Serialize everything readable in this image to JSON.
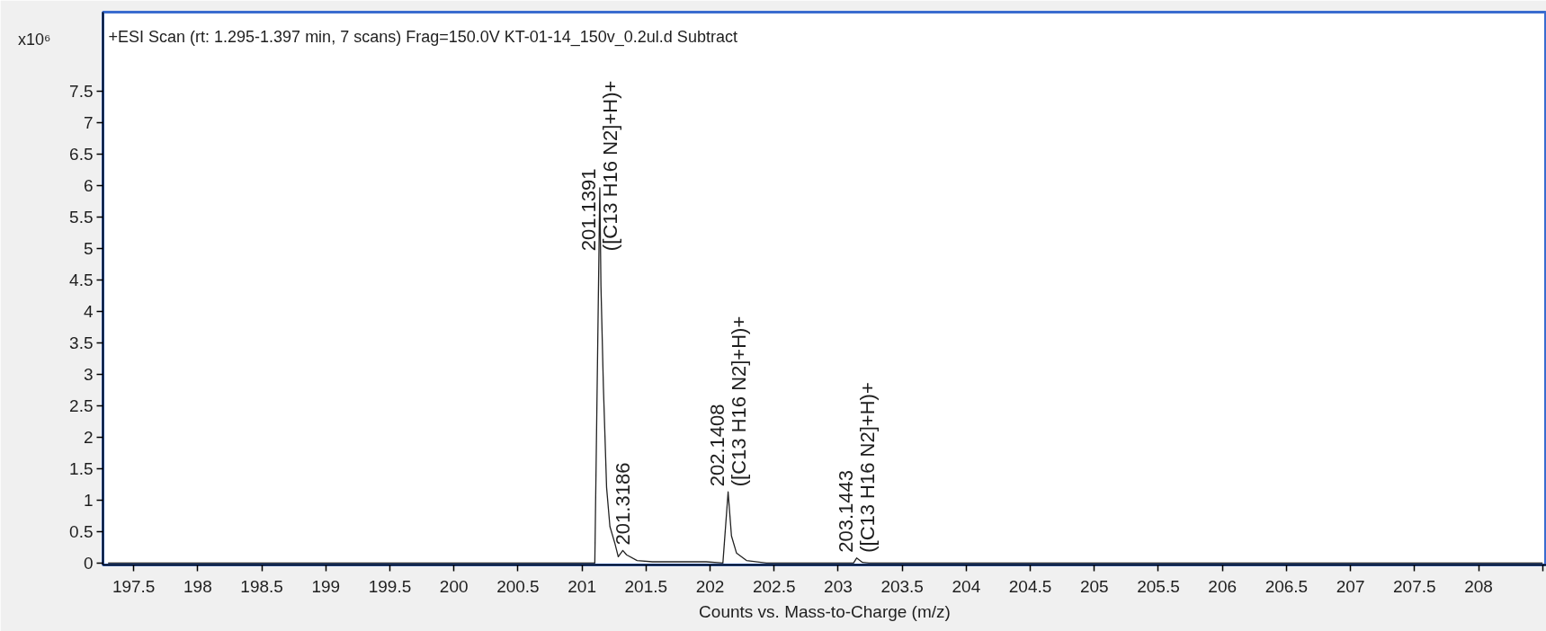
{
  "chart_data": {
    "type": "line",
    "title": "+ESI Scan (rt: 1.295-1.397 min, 7 scans) Frag=150.0V KT-01-14_150v_0.2ul.d  Subtract",
    "xlabel": "Counts vs. Mass-to-Charge (m/z)",
    "ylabel": "x10⁶",
    "x": [
      197.3,
      201.1,
      201.139,
      201.148,
      201.167,
      201.192,
      201.218,
      201.257,
      201.283,
      201.3186,
      201.348,
      201.43,
      201.55,
      201.97,
      202.1,
      202.1408,
      202.167,
      202.206,
      202.284,
      202.44,
      203.12,
      203.1443,
      203.19,
      203.24,
      208.5
    ],
    "series": [
      {
        "color": "#222222",
        "values": [
          0,
          0,
          5.96,
          4.4,
          2.8,
          1.2,
          0.58,
          0.31,
          0.1,
          0.2,
          0.13,
          0.04,
          0.02,
          0.02,
          0,
          1.13,
          0.43,
          0.16,
          0.04,
          0,
          0,
          0.08,
          0.01,
          0,
          0
        ]
      }
    ],
    "xlim": [
      197.26,
      208.53
    ],
    "ylim": [
      -0.03,
      8.75
    ],
    "xticks": [
      197.5,
      198,
      198.5,
      199,
      199.5,
      200,
      200.5,
      201,
      201.5,
      202,
      202.5,
      203,
      203.5,
      204,
      204.5,
      205,
      205.5,
      206,
      206.5,
      207,
      207.5,
      208,
      {
        "value": 208.5,
        "label": null
      }
    ],
    "yticks": [
      0,
      0.5,
      1,
      1.5,
      2,
      2.5,
      3,
      3.5,
      4,
      4.5,
      5,
      5.5,
      6,
      6.5,
      7,
      7.5
    ],
    "annotations": [
      {
        "text": "201.1391",
        "x": 201.1391,
        "y": 5.96
      },
      {
        "text": "([C13 H16 N2]+H)+",
        "x": 201.1391,
        "y": 5.96
      },
      {
        "text": "201.3186",
        "x": 201.3186,
        "y": 0.2
      },
      {
        "text": "202.1408",
        "x": 202.1408,
        "y": 1.13
      },
      {
        "text": "([C13 H16 N2]+H)+",
        "x": 202.1408,
        "y": 1.13
      },
      {
        "text": "203.1443",
        "x": 203.1443,
        "y": 0.08
      },
      {
        "text": "([C13 H16 N2]+H)+",
        "x": 203.1443,
        "y": 0.08
      }
    ]
  }
}
